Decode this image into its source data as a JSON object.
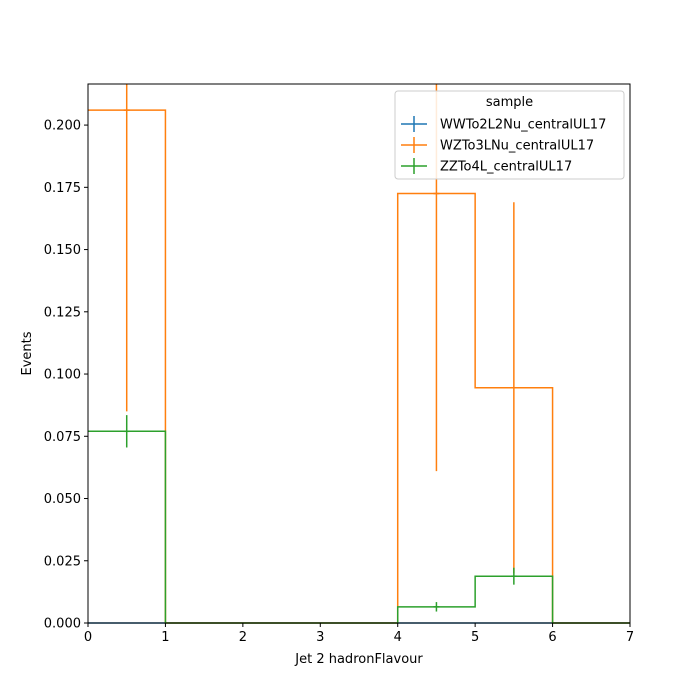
{
  "chart_data": {
    "type": "histogram-step",
    "xlabel": "Jet 2 hadronFlavour",
    "ylabel": "Events",
    "xlim": [
      0,
      7
    ],
    "ylim": [
      0,
      0.2165
    ],
    "x_ticks": [
      "0",
      "1",
      "2",
      "3",
      "4",
      "5",
      "6",
      "7"
    ],
    "y_ticks": [
      "0.000",
      "0.025",
      "0.050",
      "0.075",
      "0.100",
      "0.125",
      "0.150",
      "0.175",
      "0.200"
    ],
    "legend": {
      "title": "sample",
      "placement": "top-right"
    },
    "bin_edges": [
      0,
      1,
      2,
      3,
      4,
      5,
      6,
      7
    ],
    "series": [
      {
        "name": "WWTo2L2Nu_centralUL17",
        "color": "#1f77b4",
        "values": [
          0,
          0,
          0,
          0,
          0,
          0,
          0
        ],
        "errors": [
          0,
          0,
          0,
          0,
          0,
          0,
          0
        ]
      },
      {
        "name": "WZTo3LNu_centralUL17",
        "color": "#ff7f0e",
        "values": [
          0.206,
          0,
          0,
          0,
          0.1725,
          0.0945,
          0
        ],
        "errors": [
          0.121,
          0,
          0,
          0,
          0.1115,
          0.0745,
          0
        ]
      },
      {
        "name": "ZZTo4L_centralUL17",
        "color": "#2ca02c",
        "values": [
          0.077,
          0,
          0,
          0,
          0.0065,
          0.0188,
          0
        ],
        "errors": [
          0.0065,
          0,
          0,
          0,
          0.0019,
          0.0034,
          0
        ]
      }
    ]
  }
}
